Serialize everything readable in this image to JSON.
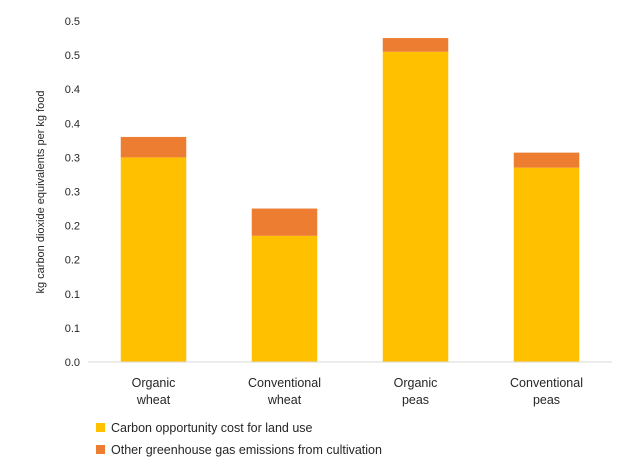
{
  "chart_data": {
    "type": "bar",
    "stacked": true,
    "categories": [
      [
        "Organic",
        "wheat"
      ],
      [
        "Conventional",
        "wheat"
      ],
      [
        "Organic",
        "peas"
      ],
      [
        "Conventional",
        "peas"
      ]
    ],
    "series": [
      {
        "name": "Carbon opportunity cost for land use",
        "color": "#FFC000",
        "values": [
          0.3,
          0.185,
          0.455,
          0.285
        ]
      },
      {
        "name": "Other greenhouse gas emissions from cultivation",
        "color": "#ED7D31",
        "values": [
          0.03,
          0.04,
          0.02,
          0.022
        ]
      }
    ],
    "ylabel": "kg carbon dioxide equivalents per kg food",
    "xlabel": "",
    "ylim": [
      0,
      0.5
    ],
    "yticks": [
      0,
      0.05,
      0.1,
      0.15,
      0.2,
      0.25,
      0.3,
      0.35,
      0.4,
      0.45,
      0.5
    ],
    "ytick_labels": [
      "0.0",
      "0.1",
      "0.1",
      "0.2",
      "0.2",
      "0.3",
      "0.3",
      "0.4",
      "0.4",
      "0.5",
      "0.5"
    ],
    "grid": false,
    "legend": "bottom-left"
  }
}
